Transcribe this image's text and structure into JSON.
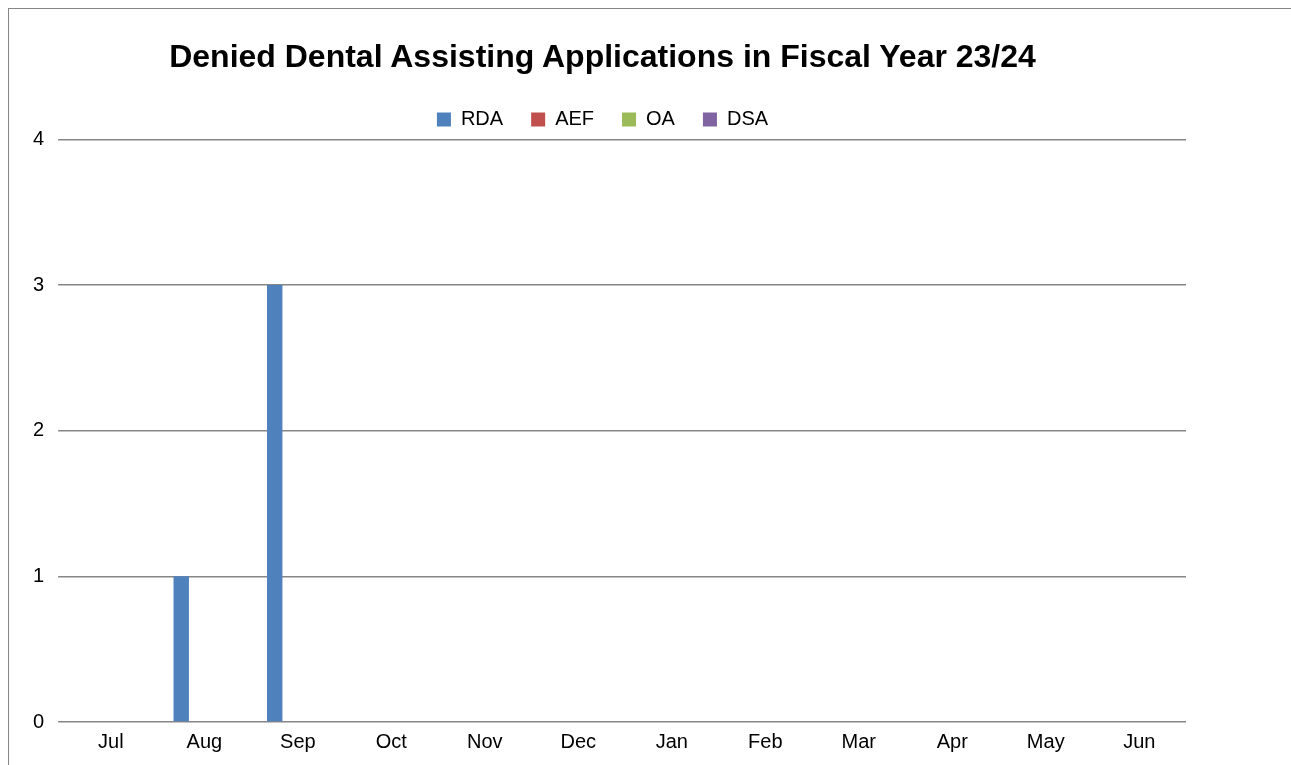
{
  "chart_data": {
    "type": "bar",
    "title": "Denied Dental Assisting Applications in Fiscal Year 23/24",
    "categories": [
      "Jul",
      "Aug",
      "Sep",
      "Oct",
      "Nov",
      "Dec",
      "Jan",
      "Feb",
      "Mar",
      "Apr",
      "May",
      "Jun"
    ],
    "series": [
      {
        "name": "RDA",
        "color": "#4f81bd",
        "values": [
          0,
          1,
          3,
          0,
          0,
          0,
          0,
          0,
          0,
          0,
          0,
          0
        ]
      },
      {
        "name": "AEF",
        "color": "#c0504d",
        "values": [
          0,
          0,
          0,
          0,
          0,
          0,
          0,
          0,
          0,
          0,
          0,
          0
        ]
      },
      {
        "name": "OA",
        "color": "#9bbb59",
        "values": [
          0,
          0,
          0,
          0,
          0,
          0,
          0,
          0,
          0,
          0,
          0,
          0
        ]
      },
      {
        "name": "DSA",
        "color": "#8064a2",
        "values": [
          0,
          0,
          0,
          0,
          0,
          0,
          0,
          0,
          0,
          0,
          0,
          0
        ]
      }
    ],
    "ylim": [
      0,
      4
    ],
    "yticks": [
      0,
      1,
      2,
      3,
      4
    ],
    "grid": "y",
    "legend": "top"
  }
}
